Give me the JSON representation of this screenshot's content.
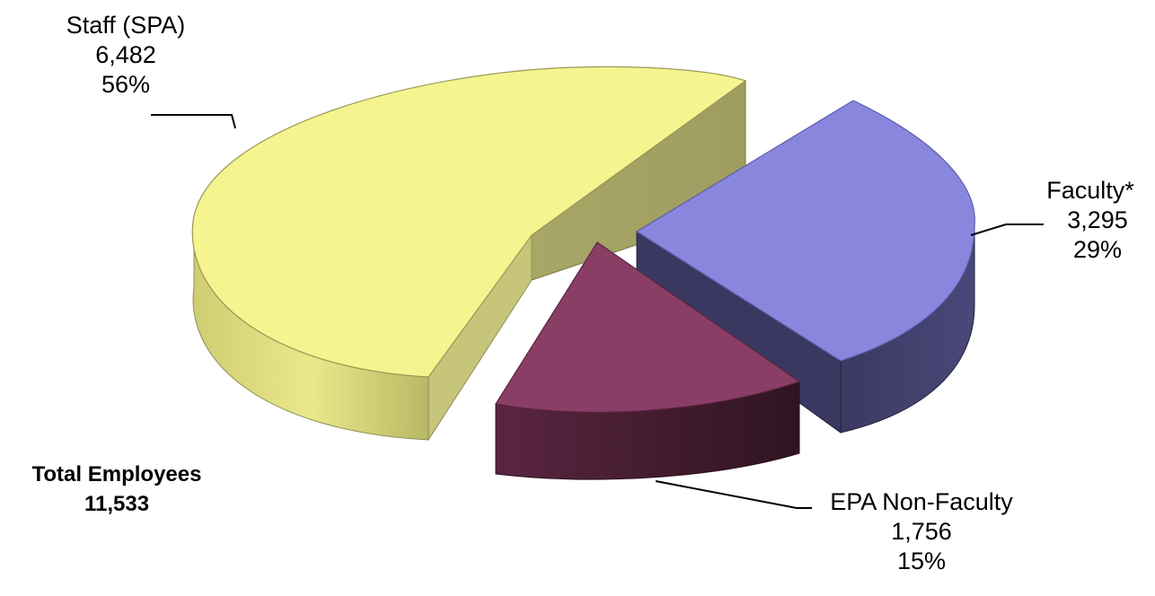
{
  "chart_data": {
    "type": "pie",
    "style": "3d-exploded",
    "slices": [
      {
        "label": "Staff (SPA)",
        "value": 6482,
        "value_text": "6,482",
        "percent": 56,
        "percent_text": "56%",
        "color": "#f3f28c"
      },
      {
        "label": "Faculty*",
        "value": 3295,
        "value_text": "3,295",
        "percent": 29,
        "percent_text": "29%",
        "color": "#8885dd"
      },
      {
        "label": "EPA Non-Faculty",
        "value": 1756,
        "value_text": "1,756",
        "percent": 15,
        "percent_text": "15%",
        "color": "#8a3e66"
      }
    ],
    "total_label": "Total Employees",
    "total_value": "11,533"
  }
}
